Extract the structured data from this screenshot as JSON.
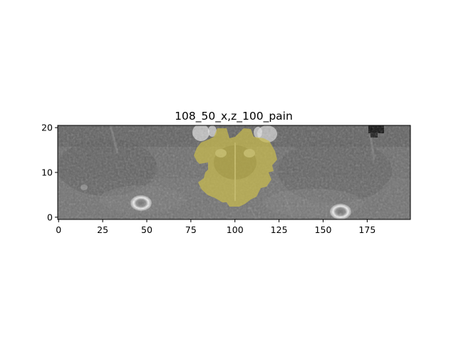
{
  "title": "108_50_x,z_100_pain",
  "image": {
    "description_kind": "grayscale CT slice with yellow segmentation overlay",
    "overlay_color": "#c8b84a",
    "background_gray": "#6e6e6e"
  },
  "axes": {
    "x": {
      "range": [
        0,
        199
      ],
      "ticks": [
        0,
        25,
        50,
        75,
        100,
        125,
        150,
        175
      ],
      "tick_labels": [
        "0",
        "25",
        "50",
        "75",
        "100",
        "125",
        "150",
        "175"
      ]
    },
    "y": {
      "range": [
        0,
        20
      ],
      "ticks": [
        0,
        10,
        20
      ],
      "tick_labels": [
        "0",
        "10",
        "20"
      ]
    }
  }
}
